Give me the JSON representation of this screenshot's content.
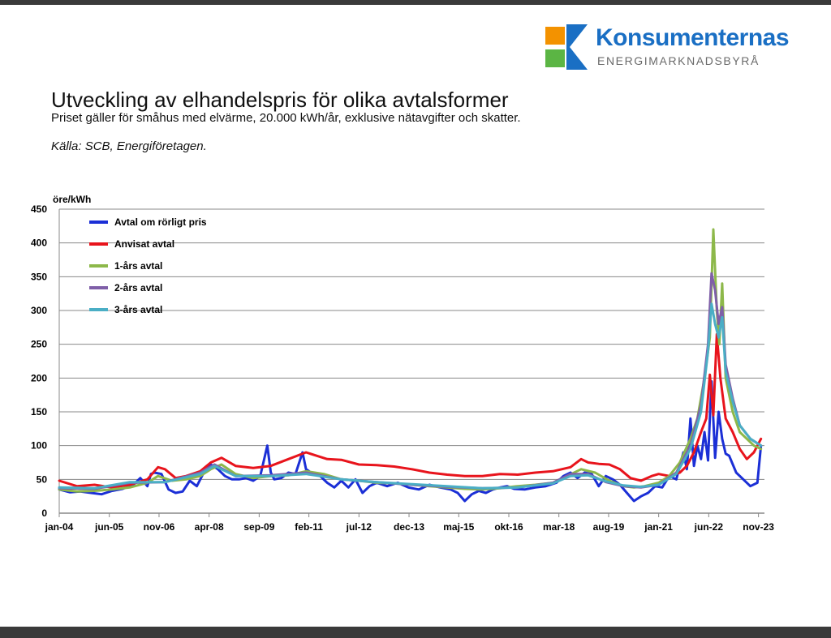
{
  "logo": {
    "name": "Konsumenternas",
    "tagline": "ENERGIMARKNADSBYRÅ",
    "colors": {
      "orange": "#f39200",
      "blue": "#1a6fc4",
      "green": "#5bb544"
    }
  },
  "header": {
    "title": "Utveckling av elhandelspris för olika avtalsformer",
    "subtitle": "Priset gäller för småhus med elvärme, 20.000 kWh/år, exklusive nätavgifter och skatter.",
    "source": "Källa: SCB, Energiföretagen."
  },
  "chart_data": {
    "type": "line",
    "title": "",
    "xlabel": "",
    "ylabel": "öre/kWh",
    "ylim": [
      0,
      450
    ],
    "yticks": [
      0,
      50,
      100,
      150,
      200,
      250,
      300,
      350,
      400,
      450
    ],
    "xlim": [
      2004.0,
      2024.0
    ],
    "grid": "horizontal",
    "legend": "top-left",
    "xtick_labels": [
      {
        "label": "jan-04",
        "x": 2004.0
      },
      {
        "label": "jun-05",
        "x": 2005.42
      },
      {
        "label": "nov-06",
        "x": 2006.83
      },
      {
        "label": "apr-08",
        "x": 2008.25
      },
      {
        "label": "sep-09",
        "x": 2009.67
      },
      {
        "label": "feb-11",
        "x": 2011.08
      },
      {
        "label": "jul-12",
        "x": 2012.5
      },
      {
        "label": "dec-13",
        "x": 2013.92
      },
      {
        "label": "maj-15",
        "x": 2015.33
      },
      {
        "label": "okt-16",
        "x": 2016.75
      },
      {
        "label": "mar-18",
        "x": 2018.17
      },
      {
        "label": "aug-19",
        "x": 2019.58
      },
      {
        "label": "jan-21",
        "x": 2021.0
      },
      {
        "label": "jun-22",
        "x": 2022.42
      },
      {
        "label": "nov-23",
        "x": 2023.83
      }
    ],
    "series": [
      {
        "name": "Avtal om rörligt pris",
        "color": "#1b2fd6",
        "x": [
          2004.0,
          2004.3,
          2004.6,
          2004.9,
          2005.2,
          2005.5,
          2005.8,
          2006.1,
          2006.3,
          2006.5,
          2006.6,
          2006.7,
          2006.9,
          2007.1,
          2007.3,
          2007.5,
          2007.7,
          2007.9,
          2008.1,
          2008.3,
          2008.5,
          2008.7,
          2008.9,
          2009.1,
          2009.3,
          2009.5,
          2009.7,
          2009.9,
          2010.0,
          2010.1,
          2010.3,
          2010.5,
          2010.7,
          2010.9,
          2011.0,
          2011.2,
          2011.4,
          2011.6,
          2011.8,
          2012.0,
          2012.2,
          2012.4,
          2012.6,
          2012.8,
          2013.0,
          2013.3,
          2013.6,
          2013.9,
          2014.2,
          2014.5,
          2014.8,
          2015.1,
          2015.3,
          2015.5,
          2015.7,
          2015.9,
          2016.1,
          2016.3,
          2016.5,
          2016.7,
          2016.9,
          2017.2,
          2017.5,
          2017.8,
          2018.1,
          2018.3,
          2018.5,
          2018.7,
          2018.9,
          2019.1,
          2019.3,
          2019.5,
          2019.7,
          2019.9,
          2020.1,
          2020.3,
          2020.5,
          2020.7,
          2020.9,
          2021.1,
          2021.3,
          2021.5,
          2021.7,
          2021.8,
          2021.9,
          2022.0,
          2022.1,
          2022.2,
          2022.3,
          2022.4,
          2022.45,
          2022.5,
          2022.6,
          2022.7,
          2022.8,
          2022.9,
          2023.0,
          2023.2,
          2023.4,
          2023.6,
          2023.8,
          2023.9
        ],
        "y": [
          35,
          31,
          32,
          30,
          28,
          33,
          36,
          42,
          52,
          40,
          58,
          60,
          58,
          35,
          30,
          32,
          48,
          40,
          60,
          72,
          65,
          55,
          50,
          50,
          52,
          48,
          55,
          100,
          60,
          50,
          52,
          60,
          58,
          90,
          65,
          58,
          55,
          45,
          38,
          48,
          38,
          50,
          30,
          40,
          45,
          40,
          45,
          38,
          35,
          42,
          38,
          35,
          30,
          18,
          28,
          33,
          30,
          35,
          38,
          40,
          36,
          35,
          38,
          40,
          45,
          55,
          60,
          52,
          60,
          58,
          40,
          55,
          50,
          42,
          30,
          18,
          25,
          30,
          40,
          38,
          55,
          50,
          90,
          65,
          140,
          70,
          100,
          80,
          120,
          78,
          140,
          195,
          82,
          150,
          110,
          88,
          85,
          60,
          50,
          40,
          45,
          100
        ]
      },
      {
        "name": "Anvisat avtal",
        "color": "#e8141c",
        "x": [
          2004.0,
          2004.5,
          2005.0,
          2005.5,
          2006.0,
          2006.5,
          2006.8,
          2007.0,
          2007.3,
          2007.6,
          2008.0,
          2008.3,
          2008.6,
          2009.0,
          2009.5,
          2010.0,
          2010.5,
          2011.0,
          2011.3,
          2011.6,
          2012.0,
          2012.5,
          2013.0,
          2013.5,
          2014.0,
          2014.5,
          2015.0,
          2015.5,
          2016.0,
          2016.5,
          2017.0,
          2017.5,
          2018.0,
          2018.5,
          2018.8,
          2019.0,
          2019.3,
          2019.6,
          2019.9,
          2020.2,
          2020.5,
          2020.8,
          2021.0,
          2021.3,
          2021.6,
          2021.8,
          2022.0,
          2022.2,
          2022.35,
          2022.45,
          2022.55,
          2022.65,
          2022.75,
          2022.9,
          2023.1,
          2023.3,
          2023.5,
          2023.7,
          2023.9
        ],
        "y": [
          48,
          40,
          42,
          38,
          42,
          50,
          68,
          65,
          52,
          55,
          62,
          75,
          82,
          70,
          67,
          70,
          80,
          90,
          85,
          80,
          79,
          72,
          71,
          69,
          65,
          60,
          57,
          55,
          55,
          58,
          57,
          60,
          62,
          68,
          80,
          75,
          73,
          72,
          65,
          52,
          48,
          55,
          58,
          55,
          60,
          70,
          90,
          120,
          140,
          205,
          145,
          265,
          200,
          140,
          120,
          95,
          80,
          90,
          110
        ]
      },
      {
        "name": "1-års avtal",
        "color": "#8db84a",
        "x": [
          2004.0,
          2004.5,
          2005.0,
          2005.5,
          2006.0,
          2006.5,
          2006.8,
          2007.2,
          2007.6,
          2008.0,
          2008.3,
          2008.6,
          2009.0,
          2009.5,
          2010.0,
          2010.5,
          2011.0,
          2011.5,
          2012.0,
          2012.5,
          2013.0,
          2013.5,
          2014.0,
          2014.5,
          2015.0,
          2015.5,
          2016.0,
          2016.5,
          2017.0,
          2017.5,
          2018.0,
          2018.4,
          2018.8,
          2019.2,
          2019.6,
          2020.0,
          2020.3,
          2020.6,
          2021.0,
          2021.3,
          2021.6,
          2021.9,
          2022.1,
          2022.3,
          2022.45,
          2022.55,
          2022.65,
          2022.72,
          2022.8,
          2022.9,
          2023.1,
          2023.3,
          2023.5,
          2023.7,
          2023.9
        ],
        "y": [
          35,
          32,
          33,
          35,
          38,
          45,
          55,
          48,
          50,
          55,
          65,
          72,
          58,
          52,
          55,
          56,
          62,
          58,
          50,
          48,
          45,
          44,
          42,
          40,
          38,
          36,
          35,
          37,
          40,
          42,
          45,
          55,
          65,
          60,
          48,
          40,
          38,
          40,
          45,
          55,
          75,
          110,
          140,
          200,
          260,
          420,
          300,
          250,
          340,
          200,
          150,
          120,
          110,
          100,
          95
        ]
      },
      {
        "name": "2-års avtal",
        "color": "#7f5fa8",
        "x": [
          2004.0,
          2005.0,
          2006.0,
          2007.0,
          2008.0,
          2008.4,
          2009.0,
          2010.0,
          2011.0,
          2012.0,
          2013.0,
          2014.0,
          2015.0,
          2016.0,
          2017.0,
          2018.0,
          2018.5,
          2019.0,
          2019.5,
          2020.0,
          2020.5,
          2021.0,
          2021.5,
          2021.9,
          2022.2,
          2022.4,
          2022.5,
          2022.6,
          2022.7,
          2022.8,
          2022.9,
          2023.1,
          2023.3,
          2023.6,
          2023.9
        ],
        "y": [
          37,
          36,
          45,
          46,
          60,
          72,
          55,
          56,
          60,
          50,
          46,
          42,
          39,
          37,
          38,
          45,
          58,
          58,
          46,
          40,
          38,
          42,
          60,
          100,
          160,
          250,
          355,
          330,
          280,
          305,
          220,
          170,
          130,
          110,
          100
        ]
      },
      {
        "name": "3-års avtal",
        "color": "#4aaec5",
        "x": [
          2004.0,
          2005.0,
          2006.0,
          2007.0,
          2008.0,
          2008.4,
          2009.0,
          2010.0,
          2011.0,
          2012.0,
          2013.0,
          2014.0,
          2015.0,
          2016.0,
          2017.0,
          2018.0,
          2018.5,
          2019.0,
          2019.5,
          2020.0,
          2020.5,
          2021.0,
          2021.5,
          2021.9,
          2022.2,
          2022.4,
          2022.5,
          2022.6,
          2022.7,
          2022.8,
          2022.9,
          2023.1,
          2023.3,
          2023.6,
          2023.9
        ],
        "y": [
          38,
          37,
          46,
          46,
          58,
          70,
          55,
          55,
          58,
          50,
          46,
          43,
          40,
          37,
          38,
          44,
          55,
          56,
          47,
          41,
          39,
          42,
          58,
          95,
          150,
          240,
          310,
          280,
          260,
          290,
          210,
          165,
          130,
          110,
          100
        ]
      }
    ]
  }
}
